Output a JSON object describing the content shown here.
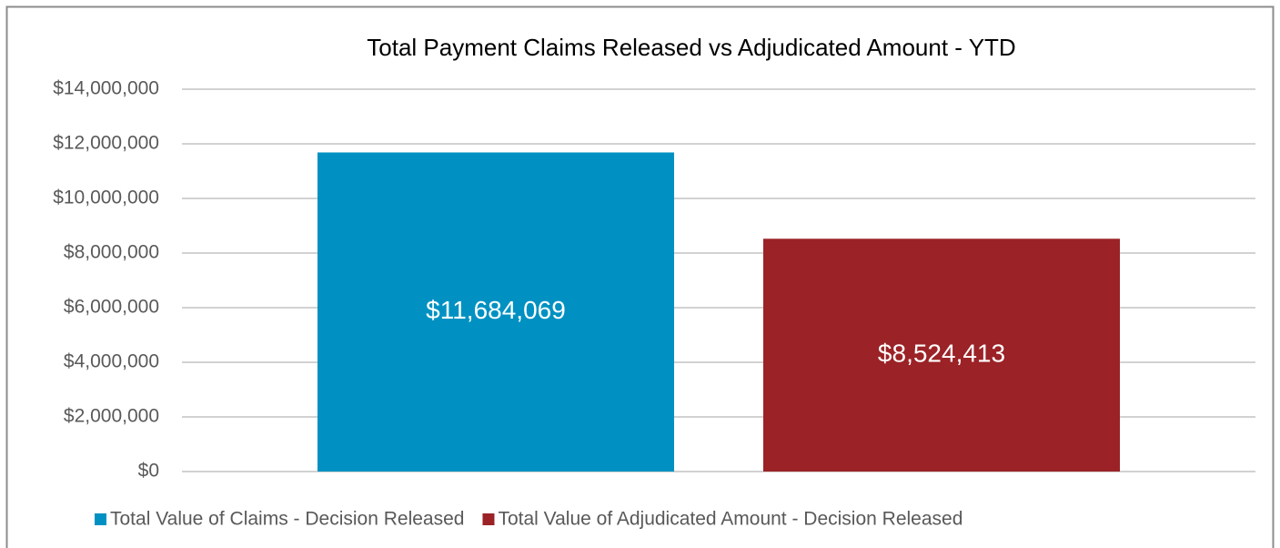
{
  "chart_data": {
    "type": "bar",
    "title": "Total Payment Claims Released vs Adjudicated Amount - YTD",
    "categories": [
      null
    ],
    "series": [
      {
        "name": "Total Value of Claims - Decision Released",
        "color": "#0091c2",
        "values": [
          11684069
        ],
        "value_labels": [
          "$11,684,069"
        ]
      },
      {
        "name": "Total Value of Adjudicated Amount - Decision Released",
        "color": "#9b2226",
        "values": [
          8524413
        ],
        "value_labels": [
          "$8,524,413"
        ]
      }
    ],
    "ylim": [
      0,
      14000000
    ],
    "yticks": [
      {
        "value": 0,
        "label": "$0"
      },
      {
        "value": 2000000,
        "label": "$2,000,000"
      },
      {
        "value": 4000000,
        "label": "$4,000,000"
      },
      {
        "value": 6000000,
        "label": "$6,000,000"
      },
      {
        "value": 8000000,
        "label": "$8,000,000"
      },
      {
        "value": 10000000,
        "label": "$10,000,000"
      },
      {
        "value": 12000000,
        "label": "$12,000,000"
      },
      {
        "value": 14000000,
        "label": "$14,000,000"
      }
    ],
    "grid": true,
    "legend": "bottom"
  }
}
